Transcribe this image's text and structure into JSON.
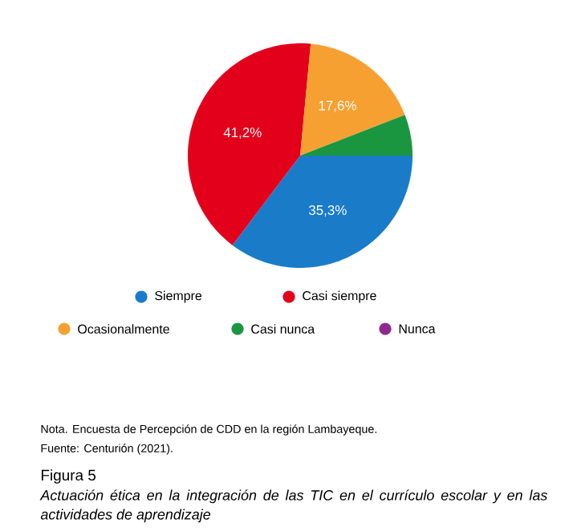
{
  "chart_data": {
    "type": "pie",
    "categories": [
      "Siempre",
      "Casi siempre",
      "Ocasionalmente",
      "Casi nunca",
      "Nunca"
    ],
    "values": [
      35.3,
      41.2,
      17.6,
      5.9,
      0
    ],
    "colors": [
      "#1a7cc9",
      "#e3001b",
      "#f7a032",
      "#1a9641",
      "#8e2a8e"
    ],
    "value_labels": [
      "35,3%",
      "41,2%",
      "17,6%",
      null,
      null
    ],
    "legend": "bottom",
    "title": "Figura 5",
    "subtitle": "Actuación ética en la integración de las TIC en el currículo escolar y en las actividades de aprendizaje",
    "annotations": [
      "Nota. Encuesta de Percepción de CDD en la región Lambayeque.",
      "Fuente: Centurión (2021)."
    ]
  }
}
